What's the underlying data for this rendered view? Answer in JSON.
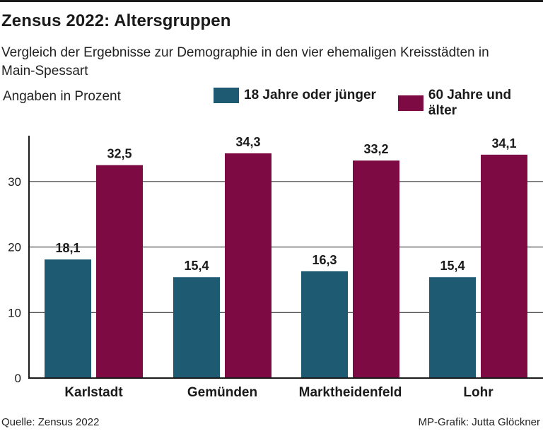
{
  "header": {
    "title": "Zensus 2022: Altersgruppen",
    "subtitle": "Vergleich der Ergebnisse zur Demographie in den vier ehemaligen Kreisstädten in Main-Spessart",
    "unit_note": "Angaben in Prozent"
  },
  "footer": {
    "source": "Quelle: Zensus 2022",
    "credit": "MP-Grafik: Jutta Glöckner"
  },
  "colors": {
    "young": "#1f5a73",
    "old": "#7d0a42",
    "grid": "#1a1a1a"
  },
  "chart_data": {
    "type": "bar",
    "title": "Zensus 2022: Altersgruppen",
    "subtitle": "Vergleich der Ergebnisse zur Demographie in den vier ehemaligen Kreisstädten in Main-Spessart",
    "xlabel": "",
    "ylabel": "Angaben in Prozent",
    "categories": [
      "Karlstadt",
      "Gemünden",
      "Marktheidenfeld",
      "Lohr"
    ],
    "series": [
      {
        "name": "18 Jahre oder jünger",
        "values": [
          18.1,
          15.4,
          16.3,
          15.4
        ],
        "labels": [
          "18,1",
          "15,4",
          "16,3",
          "15,4"
        ]
      },
      {
        "name": "60 Jahre und älter",
        "values": [
          32.5,
          34.3,
          33.2,
          34.1
        ],
        "labels": [
          "32,5",
          "34,3",
          "33,2",
          "34,1"
        ]
      }
    ],
    "yticks": [
      0,
      10,
      20,
      30
    ],
    "ytick_labels": [
      "0",
      "10",
      "20",
      "30"
    ],
    "ylim": [
      0,
      37
    ],
    "grid": true,
    "legend_position": "top"
  }
}
